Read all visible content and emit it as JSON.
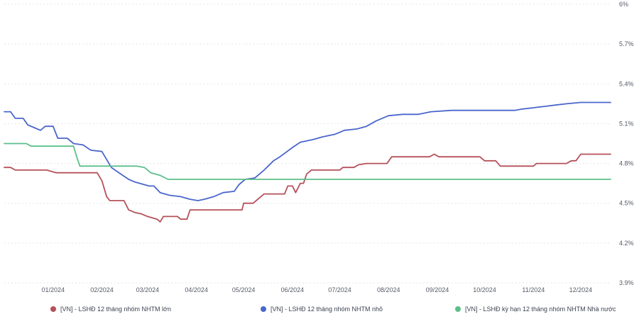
{
  "chart_data": {
    "type": "line",
    "title": "",
    "xlabel": "",
    "ylabel": "",
    "y_axis_position": "right",
    "ylim": [
      3.9,
      6.0
    ],
    "y_ticks": [
      {
        "value": 3.9,
        "label": "3.9%"
      },
      {
        "value": 4.2,
        "label": "4.2%"
      },
      {
        "value": 4.5,
        "label": "4.5%"
      },
      {
        "value": 4.8,
        "label": "4.8%"
      },
      {
        "value": 5.1,
        "label": "5.1%"
      },
      {
        "value": 5.4,
        "label": "5.4%"
      },
      {
        "value": 5.7,
        "label": "5.7%"
      },
      {
        "value": 6.0,
        "label": "6%"
      }
    ],
    "xlim": [
      "2023-12-01",
      "2024-12-20"
    ],
    "x_ticks": [
      {
        "value": "2024-01-01",
        "label": "01/2024"
      },
      {
        "value": "2024-02-01",
        "label": "02/2024"
      },
      {
        "value": "2024-03-01",
        "label": "03/2024"
      },
      {
        "value": "2024-04-01",
        "label": "04/2024"
      },
      {
        "value": "2024-05-01",
        "label": "05/2024"
      },
      {
        "value": "2024-06-01",
        "label": "06/2024"
      },
      {
        "value": "2024-07-01",
        "label": "07/2024"
      },
      {
        "value": "2024-08-01",
        "label": "08/2024"
      },
      {
        "value": "2024-09-01",
        "label": "09/2024"
      },
      {
        "value": "2024-10-01",
        "label": "10/2024"
      },
      {
        "value": "2024-11-01",
        "label": "11/2024"
      },
      {
        "value": "2024-12-01",
        "label": "12/2024"
      }
    ],
    "grid": true,
    "legend_position": "bottom",
    "series": [
      {
        "name": "[VN] - LSHĐ 12 tháng nhóm NHTM lớn",
        "color": "#b5505a",
        "points": [
          [
            "2023-12-01",
            4.77
          ],
          [
            "2023-12-05",
            4.77
          ],
          [
            "2023-12-08",
            4.75
          ],
          [
            "2023-12-20",
            4.75
          ],
          [
            "2023-12-28",
            4.75
          ],
          [
            "2024-01-03",
            4.73
          ],
          [
            "2024-01-20",
            4.73
          ],
          [
            "2024-01-29",
            4.73
          ],
          [
            "2024-02-01",
            4.67
          ],
          [
            "2024-02-04",
            4.55
          ],
          [
            "2024-02-06",
            4.52
          ],
          [
            "2024-02-15",
            4.52
          ],
          [
            "2024-02-18",
            4.45
          ],
          [
            "2024-02-22",
            4.43
          ],
          [
            "2024-02-26",
            4.42
          ],
          [
            "2024-03-01",
            4.4
          ],
          [
            "2024-03-07",
            4.38
          ],
          [
            "2024-03-09",
            4.36
          ],
          [
            "2024-03-11",
            4.4
          ],
          [
            "2024-03-20",
            4.4
          ],
          [
            "2024-03-22",
            4.38
          ],
          [
            "2024-03-26",
            4.38
          ],
          [
            "2024-03-28",
            4.45
          ],
          [
            "2024-04-30",
            4.45
          ],
          [
            "2024-05-01",
            4.5
          ],
          [
            "2024-05-07",
            4.5
          ],
          [
            "2024-05-10",
            4.53
          ],
          [
            "2024-05-14",
            4.57
          ],
          [
            "2024-05-27",
            4.57
          ],
          [
            "2024-05-29",
            4.63
          ],
          [
            "2024-06-01",
            4.63
          ],
          [
            "2024-06-03",
            4.58
          ],
          [
            "2024-06-06",
            4.65
          ],
          [
            "2024-06-08",
            4.65
          ],
          [
            "2024-06-10",
            4.72
          ],
          [
            "2024-06-13",
            4.75
          ],
          [
            "2024-07-01",
            4.75
          ],
          [
            "2024-07-03",
            4.77
          ],
          [
            "2024-07-10",
            4.77
          ],
          [
            "2024-07-13",
            4.79
          ],
          [
            "2024-07-18",
            4.8
          ],
          [
            "2024-07-31",
            4.8
          ],
          [
            "2024-08-03",
            4.85
          ],
          [
            "2024-08-27",
            4.85
          ],
          [
            "2024-08-30",
            4.87
          ],
          [
            "2024-09-02",
            4.85
          ],
          [
            "2024-09-28",
            4.85
          ],
          [
            "2024-10-01",
            4.82
          ],
          [
            "2024-10-08",
            4.82
          ],
          [
            "2024-10-11",
            4.78
          ],
          [
            "2024-11-01",
            4.78
          ],
          [
            "2024-11-03",
            4.8
          ],
          [
            "2024-11-22",
            4.8
          ],
          [
            "2024-11-25",
            4.82
          ],
          [
            "2024-11-28",
            4.82
          ],
          [
            "2024-12-01",
            4.87
          ],
          [
            "2024-12-20",
            4.87
          ]
        ]
      },
      {
        "name": "[VN] - LSHĐ 12 tháng nhóm NHTM nhỏ",
        "color": "#4a66cc",
        "points": [
          [
            "2023-12-01",
            5.19
          ],
          [
            "2023-12-05",
            5.19
          ],
          [
            "2023-12-08",
            5.14
          ],
          [
            "2023-12-13",
            5.14
          ],
          [
            "2023-12-16",
            5.09
          ],
          [
            "2023-12-20",
            5.07
          ],
          [
            "2023-12-24",
            5.05
          ],
          [
            "2023-12-27",
            5.08
          ],
          [
            "2024-01-01",
            5.08
          ],
          [
            "2024-01-04",
            4.99
          ],
          [
            "2024-01-10",
            4.99
          ],
          [
            "2024-01-14",
            4.95
          ],
          [
            "2024-01-20",
            4.94
          ],
          [
            "2024-01-25",
            4.9
          ],
          [
            "2024-02-01",
            4.89
          ],
          [
            "2024-02-07",
            4.77
          ],
          [
            "2024-02-13",
            4.72
          ],
          [
            "2024-02-18",
            4.68
          ],
          [
            "2024-02-22",
            4.66
          ],
          [
            "2024-02-28",
            4.64
          ],
          [
            "2024-03-02",
            4.63
          ],
          [
            "2024-03-05",
            4.63
          ],
          [
            "2024-03-09",
            4.58
          ],
          [
            "2024-03-15",
            4.56
          ],
          [
            "2024-03-22",
            4.55
          ],
          [
            "2024-03-28",
            4.53
          ],
          [
            "2024-04-02",
            4.52
          ],
          [
            "2024-04-06",
            4.53
          ],
          [
            "2024-04-12",
            4.55
          ],
          [
            "2024-04-18",
            4.58
          ],
          [
            "2024-04-25",
            4.59
          ],
          [
            "2024-04-28",
            4.64
          ],
          [
            "2024-05-02",
            4.68
          ],
          [
            "2024-05-08",
            4.69
          ],
          [
            "2024-05-14",
            4.75
          ],
          [
            "2024-05-20",
            4.82
          ],
          [
            "2024-05-24",
            4.85
          ],
          [
            "2024-06-01",
            4.92
          ],
          [
            "2024-06-06",
            4.96
          ],
          [
            "2024-06-14",
            4.98
          ],
          [
            "2024-06-20",
            5.0
          ],
          [
            "2024-06-28",
            5.02
          ],
          [
            "2024-07-04",
            5.05
          ],
          [
            "2024-07-12",
            5.06
          ],
          [
            "2024-07-18",
            5.08
          ],
          [
            "2024-07-24",
            5.12
          ],
          [
            "2024-08-01",
            5.16
          ],
          [
            "2024-08-10",
            5.17
          ],
          [
            "2024-08-20",
            5.17
          ],
          [
            "2024-08-28",
            5.19
          ],
          [
            "2024-09-10",
            5.2
          ],
          [
            "2024-09-20",
            5.2
          ],
          [
            "2024-10-01",
            5.2
          ],
          [
            "2024-10-20",
            5.2
          ],
          [
            "2024-10-25",
            5.21
          ],
          [
            "2024-11-01",
            5.22
          ],
          [
            "2024-11-08",
            5.23
          ],
          [
            "2024-11-15",
            5.24
          ],
          [
            "2024-11-22",
            5.25
          ],
          [
            "2024-12-01",
            5.26
          ],
          [
            "2024-12-10",
            5.26
          ],
          [
            "2024-12-20",
            5.26
          ]
        ]
      },
      {
        "name": "[VN] - LSHĐ kỳ hạn 12 tháng nhóm NHTM Nhà nước",
        "color": "#5cbf8a",
        "points": [
          [
            "2023-12-01",
            4.95
          ],
          [
            "2023-12-15",
            4.95
          ],
          [
            "2023-12-18",
            4.93
          ],
          [
            "2024-01-08",
            4.93
          ],
          [
            "2024-01-14",
            4.93
          ],
          [
            "2024-01-16",
            4.85
          ],
          [
            "2024-01-18",
            4.78
          ],
          [
            "2024-02-23",
            4.78
          ],
          [
            "2024-02-28",
            4.77
          ],
          [
            "2024-03-03",
            4.73
          ],
          [
            "2024-03-09",
            4.71
          ],
          [
            "2024-03-14",
            4.68
          ],
          [
            "2024-12-20",
            4.68
          ]
        ]
      }
    ]
  }
}
